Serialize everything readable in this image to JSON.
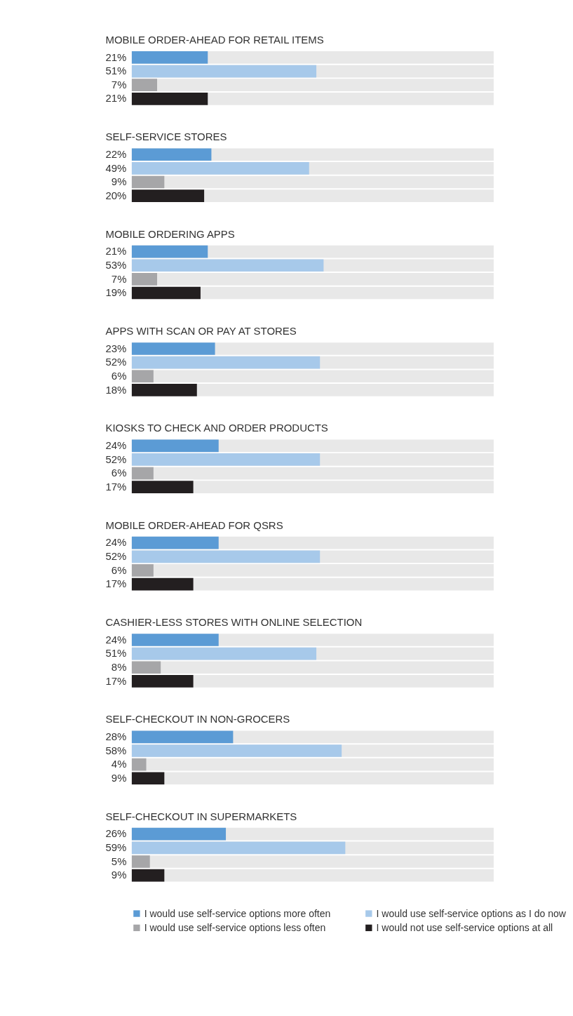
{
  "chart_data": {
    "type": "bar",
    "orientation": "horizontal",
    "categories": [
      "MOBILE ORDER-AHEAD FOR RETAIL ITEMS",
      "SELF-SERVICE STORES",
      "MOBILE ORDERING APPS",
      "APPS WITH SCAN OR PAY AT STORES",
      "KIOSKS TO CHECK AND ORDER PRODUCTS",
      "MOBILE ORDER-AHEAD FOR QSRS",
      "CASHIER-LESS STORES WITH ONLINE SELECTION",
      "SELF-CHECKOUT IN NON-GROCERS",
      "SELF-CHECKOUT IN SUPERMARKETS"
    ],
    "xlim": [
      0,
      100
    ],
    "tick_labels": "y",
    "legend": "bottom",
    "series": [
      {
        "name": "I would use self-service options more often",
        "color": "#5b9bd5",
        "values": [
          21,
          22,
          21,
          23,
          24,
          24,
          24,
          28,
          26
        ],
        "value_labels": [
          "21%",
          "22%",
          "21%",
          "23%",
          "24%",
          "24%",
          "24%",
          "28%",
          "26%"
        ]
      },
      {
        "name": "I would use self-service options as I do now",
        "color": "#a7c9ea",
        "values": [
          51,
          49,
          53,
          52,
          52,
          52,
          51,
          58,
          59
        ],
        "value_labels": [
          "51%",
          "49%",
          "53%",
          "52%",
          "52%",
          "52%",
          "51%",
          "58%",
          "59%"
        ]
      },
      {
        "name": "I would use self-service options less often",
        "color": "#a6a6a8",
        "values": [
          7,
          9,
          7,
          6,
          6,
          6,
          8,
          4,
          5
        ],
        "value_labels": [
          "7%",
          "9%",
          "7%",
          "6%",
          "6%",
          "6%",
          "8%",
          "4%",
          "5%"
        ]
      },
      {
        "name": "I would not use self-service options at all",
        "color": "#231f20",
        "values": [
          21,
          20,
          19,
          18,
          17,
          17,
          17,
          9,
          9
        ],
        "value_labels": [
          "21%",
          "20%",
          "19%",
          "18%",
          "17%",
          "17%",
          "17%",
          "9%",
          "9%"
        ]
      }
    ]
  }
}
